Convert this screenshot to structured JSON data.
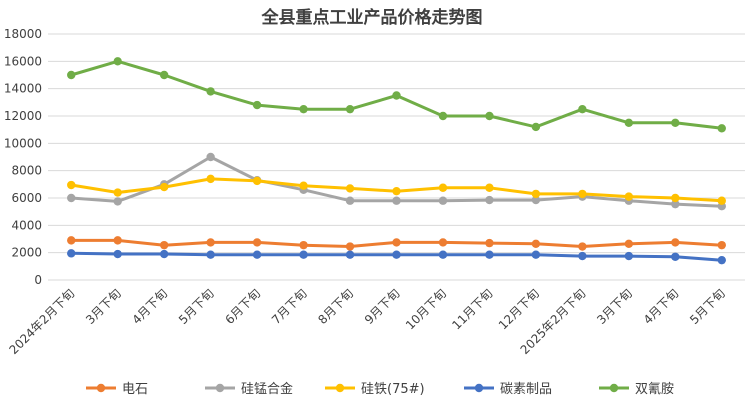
{
  "chart_data": {
    "type": "line",
    "title": "全县重点工业产品价格走势图",
    "xlabel": "",
    "ylabel": "",
    "ylim": [
      0,
      18000
    ],
    "yticks": [
      0,
      2000,
      4000,
      6000,
      8000,
      10000,
      12000,
      14000,
      16000,
      18000
    ],
    "grid": true,
    "legend_position": "bottom",
    "categories": [
      "2024年2月下旬",
      "3月下旬",
      "4月下旬",
      "5月下旬",
      "6月下旬",
      "7月下旬",
      "8月下旬",
      "9月下旬",
      "10月下旬",
      "11月下旬",
      "12月下旬",
      "2025年2月下旬",
      "3月下旬",
      "4月下旬",
      "5月下旬"
    ],
    "series": [
      {
        "name": "电石",
        "color": "#ed7d31",
        "values": [
          2900,
          2900,
          2550,
          2750,
          2750,
          2550,
          2450,
          2750,
          2750,
          2700,
          2650,
          2450,
          2650,
          2750,
          2550
        ]
      },
      {
        "name": "硅锰合金",
        "color": "#a5a5a5",
        "values": [
          6000,
          5750,
          7000,
          9000,
          7300,
          6600,
          5800,
          5800,
          5800,
          5850,
          5850,
          6100,
          5800,
          5550,
          5400
        ]
      },
      {
        "name": "硅铁(75#)",
        "color": "#ffc000",
        "values": [
          6950,
          6400,
          6800,
          7400,
          7250,
          6900,
          6700,
          6500,
          6750,
          6750,
          6300,
          6300,
          6100,
          6000,
          5800
        ]
      },
      {
        "name": "碳素制品",
        "color": "#4472c4",
        "values": [
          1950,
          1900,
          1900,
          1850,
          1850,
          1850,
          1850,
          1850,
          1850,
          1850,
          1850,
          1750,
          1750,
          1700,
          1450
        ]
      },
      {
        "name": "双氰胺",
        "color": "#70ad47",
        "values": [
          15000,
          16000,
          15000,
          13800,
          12800,
          12500,
          12500,
          13500,
          12000,
          12000,
          11200,
          12500,
          11500,
          11500,
          11100
        ]
      }
    ]
  }
}
